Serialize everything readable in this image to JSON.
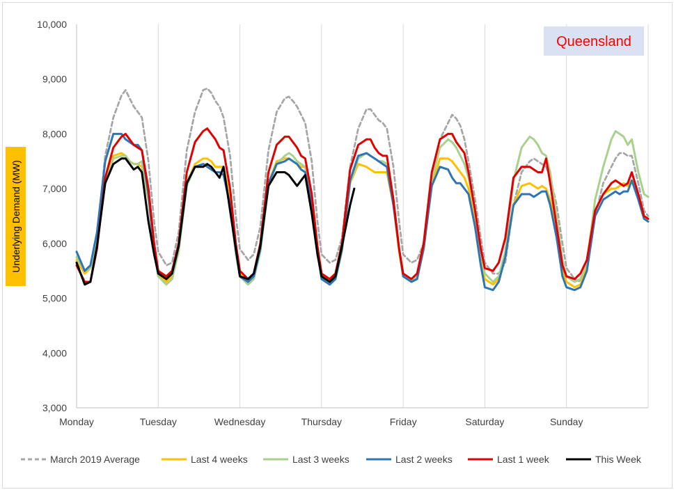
{
  "chart_data": {
    "type": "line",
    "annotation": "Queensland",
    "ylabel": "Underlying Demand (MW)",
    "xlabel": "",
    "ylim": [
      3000,
      10000
    ],
    "yticks": [
      3000,
      4000,
      5000,
      6000,
      7000,
      8000,
      9000,
      10000
    ],
    "ytick_labels": [
      "3,000",
      "4,000",
      "5,000",
      "6,000",
      "7,000",
      "8,000",
      "9,000",
      "10,000"
    ],
    "x_day_labels": [
      "Monday",
      "Tuesday",
      "Wednesday",
      "Thursday",
      "Friday",
      "Saturday",
      "Sunday"
    ],
    "xlim": [
      0,
      7
    ],
    "grid": "vertical",
    "legend_position": "bottom",
    "colors": {
      "annotation_text": "#ff0000",
      "annotation_box": "#d9e1f2",
      "ylabel_box": "#ffc000",
      "grid": "#d9d9d9"
    },
    "series": [
      {
        "name": "March 2019 Average",
        "color": "#a6a6a6",
        "dash": true,
        "x": [
          0,
          0.1,
          0.17,
          0.25,
          0.35,
          0.45,
          0.55,
          0.6,
          0.65,
          0.7,
          0.75,
          0.8,
          0.88,
          0.95,
          1.0,
          1.1,
          1.17,
          1.25,
          1.35,
          1.45,
          1.55,
          1.6,
          1.65,
          1.7,
          1.75,
          1.8,
          1.88,
          1.95,
          2.0,
          2.1,
          2.17,
          2.25,
          2.35,
          2.45,
          2.55,
          2.6,
          2.65,
          2.7,
          2.75,
          2.8,
          2.88,
          2.95,
          3.0,
          3.1,
          3.17,
          3.25,
          3.35,
          3.45,
          3.55,
          3.6,
          3.65,
          3.7,
          3.75,
          3.8,
          3.88,
          3.95,
          4.0,
          4.1,
          4.17,
          4.25,
          4.35,
          4.45,
          4.55,
          4.6,
          4.65,
          4.7,
          4.75,
          4.8,
          4.88,
          4.95,
          5.0,
          5.1,
          5.17,
          5.25,
          5.35,
          5.45,
          5.55,
          5.6,
          5.65,
          5.7,
          5.75,
          5.8,
          5.88,
          5.95,
          6.0,
          6.1,
          6.17,
          6.25,
          6.35,
          6.45,
          6.55,
          6.6,
          6.65,
          6.7,
          6.75,
          6.8,
          6.88,
          6.95,
          7.0
        ],
        "values": [
          5600,
          5500,
          5550,
          6100,
          7600,
          8300,
          8700,
          8800,
          8650,
          8500,
          8400,
          8300,
          7500,
          6400,
          5850,
          5600,
          5650,
          6200,
          7700,
          8400,
          8800,
          8830,
          8750,
          8600,
          8500,
          8300,
          7600,
          6500,
          5900,
          5700,
          5800,
          6300,
          7700,
          8400,
          8650,
          8680,
          8600,
          8500,
          8350,
          8200,
          7500,
          6400,
          5800,
          5650,
          5700,
          6100,
          7400,
          8100,
          8450,
          8450,
          8350,
          8250,
          8200,
          8100,
          7400,
          6400,
          5800,
          5650,
          5700,
          6000,
          7200,
          7900,
          8200,
          8350,
          8280,
          8150,
          7900,
          7500,
          6800,
          6100,
          5650,
          5450,
          5450,
          5650,
          6700,
          7300,
          7500,
          7550,
          7500,
          7450,
          7400,
          7200,
          6700,
          6000,
          5550,
          5350,
          5300,
          5500,
          6500,
          7100,
          7400,
          7550,
          7650,
          7650,
          7600,
          7600,
          7100,
          6600,
          6500
        ]
      },
      {
        "name": "Last 4 weeks",
        "color": "#ffc000",
        "dash": false,
        "x": [
          0,
          0.1,
          0.17,
          0.25,
          0.35,
          0.45,
          0.55,
          0.6,
          0.65,
          0.7,
          0.75,
          0.8,
          0.88,
          0.95,
          1.0,
          1.1,
          1.17,
          1.25,
          1.35,
          1.45,
          1.55,
          1.6,
          1.65,
          1.7,
          1.75,
          1.8,
          1.88,
          1.95,
          2.0,
          2.1,
          2.17,
          2.25,
          2.35,
          2.45,
          2.55,
          2.6,
          2.65,
          2.7,
          2.75,
          2.8,
          2.88,
          2.95,
          3.0,
          3.1,
          3.17,
          3.25,
          3.35,
          3.45,
          3.55,
          3.6,
          3.65,
          3.7,
          3.75,
          3.8,
          3.88,
          3.95,
          4.0,
          4.1,
          4.17,
          4.25,
          4.35,
          4.45,
          4.55,
          4.6,
          4.65,
          4.7,
          4.75,
          4.8,
          4.88,
          4.95,
          5.0,
          5.1,
          5.17,
          5.25,
          5.35,
          5.45,
          5.55,
          5.6,
          5.65,
          5.7,
          5.75,
          5.8,
          5.88,
          5.95,
          6.0,
          6.1,
          6.17,
          6.25,
          6.35,
          6.45,
          6.55,
          6.6,
          6.65,
          6.7,
          6.75,
          6.8,
          6.88,
          6.95,
          7.0
        ],
        "values": [
          5700,
          5450,
          5550,
          6000,
          7200,
          7600,
          7650,
          7600,
          7500,
          7450,
          7450,
          7400,
          6800,
          5900,
          5450,
          5300,
          5400,
          5900,
          7100,
          7450,
          7550,
          7550,
          7500,
          7400,
          7400,
          7400,
          6800,
          5900,
          5450,
          5300,
          5400,
          5900,
          7100,
          7500,
          7550,
          7550,
          7500,
          7450,
          7400,
          7400,
          6800,
          5900,
          5450,
          5300,
          5400,
          5900,
          7100,
          7450,
          7400,
          7350,
          7300,
          7300,
          7300,
          7300,
          6700,
          5850,
          5400,
          5300,
          5350,
          5900,
          7050,
          7550,
          7550,
          7500,
          7400,
          7300,
          7200,
          7000,
          6400,
          5700,
          5350,
          5250,
          5350,
          5750,
          6700,
          7050,
          7100,
          7050,
          7000,
          7050,
          7000,
          6800,
          6200,
          5500,
          5300,
          5200,
          5250,
          5550,
          6600,
          6900,
          7000,
          7000,
          7050,
          7100,
          7050,
          7150,
          6900,
          6500,
          6450
        ]
      },
      {
        "name": "Last 3 weeks",
        "color": "#a9d18e",
        "dash": false,
        "x": [
          0,
          0.1,
          0.17,
          0.25,
          0.35,
          0.45,
          0.55,
          0.6,
          0.65,
          0.7,
          0.75,
          0.8,
          0.88,
          0.95,
          1.0,
          1.1,
          1.17,
          1.25,
          1.35,
          1.45,
          1.55,
          1.6,
          1.65,
          1.7,
          1.75,
          1.8,
          1.88,
          1.95,
          2.0,
          2.1,
          2.17,
          2.25,
          2.35,
          2.45,
          2.55,
          2.6,
          2.65,
          2.7,
          2.75,
          2.8,
          2.88,
          2.95,
          3.0,
          3.1,
          3.17,
          3.25,
          3.35,
          3.45,
          3.55,
          3.6,
          3.65,
          3.7,
          3.75,
          3.8,
          3.88,
          3.95,
          4.0,
          4.1,
          4.17,
          4.25,
          4.35,
          4.45,
          4.55,
          4.6,
          4.65,
          4.7,
          4.75,
          4.8,
          4.88,
          4.95,
          5.0,
          5.1,
          5.17,
          5.25,
          5.35,
          5.45,
          5.55,
          5.6,
          5.65,
          5.7,
          5.75,
          5.8,
          5.88,
          5.95,
          6.0,
          6.1,
          6.17,
          6.25,
          6.35,
          6.45,
          6.55,
          6.6,
          6.65,
          6.7,
          6.75,
          6.8,
          6.88,
          6.95,
          7.0
        ],
        "values": [
          5750,
          5500,
          5550,
          6000,
          7100,
          7550,
          7600,
          7600,
          7500,
          7450,
          7450,
          7500,
          6800,
          5850,
          5400,
          5250,
          5350,
          5850,
          7050,
          7400,
          7450,
          7450,
          7400,
          7300,
          7300,
          7300,
          6700,
          5800,
          5400,
          5250,
          5350,
          5850,
          7050,
          7450,
          7600,
          7650,
          7600,
          7500,
          7450,
          7400,
          6800,
          5850,
          5400,
          5250,
          5350,
          5850,
          7100,
          7550,
          7650,
          7600,
          7550,
          7500,
          7500,
          7450,
          6800,
          5900,
          5450,
          5300,
          5400,
          5950,
          7150,
          7750,
          7900,
          7850,
          7750,
          7600,
          7450,
          7200,
          6600,
          5850,
          5450,
          5300,
          5400,
          5850,
          7150,
          7750,
          7950,
          7900,
          7800,
          7650,
          7600,
          7300,
          6500,
          5700,
          5400,
          5300,
          5350,
          5650,
          6800,
          7400,
          7900,
          8050,
          8000,
          7950,
          7800,
          7900,
          7300,
          6900,
          6850
        ]
      },
      {
        "name": "Last 2 weeks",
        "color": "#2e75b6",
        "dash": false,
        "x": [
          0,
          0.1,
          0.17,
          0.25,
          0.35,
          0.45,
          0.55,
          0.6,
          0.65,
          0.7,
          0.75,
          0.8,
          0.88,
          0.95,
          1.0,
          1.1,
          1.17,
          1.25,
          1.35,
          1.45,
          1.55,
          1.6,
          1.65,
          1.7,
          1.75,
          1.8,
          1.88,
          1.95,
          2.0,
          2.1,
          2.17,
          2.25,
          2.35,
          2.45,
          2.55,
          2.6,
          2.65,
          2.7,
          2.75,
          2.8,
          2.88,
          2.95,
          3.0,
          3.1,
          3.17,
          3.25,
          3.35,
          3.45,
          3.55,
          3.6,
          3.65,
          3.7,
          3.75,
          3.8,
          3.88,
          3.95,
          4.0,
          4.1,
          4.17,
          4.25,
          4.35,
          4.45,
          4.55,
          4.6,
          4.65,
          4.7,
          4.75,
          4.8,
          4.88,
          4.95,
          5.0,
          5.1,
          5.17,
          5.25,
          5.35,
          5.45,
          5.55,
          5.6,
          5.65,
          5.7,
          5.75,
          5.8,
          5.88,
          5.95,
          6.0,
          6.1,
          6.17,
          6.25,
          6.35,
          6.45,
          6.55,
          6.6,
          6.65,
          6.7,
          6.75,
          6.8,
          6.88,
          6.95,
          7.0
        ],
        "values": [
          5850,
          5500,
          5600,
          6200,
          7500,
          8000,
          8000,
          7900,
          7850,
          7800,
          7800,
          7700,
          6900,
          5900,
          5450,
          5400,
          5500,
          5950,
          7100,
          7400,
          7450,
          7400,
          7350,
          7300,
          7300,
          7250,
          6700,
          5900,
          5400,
          5300,
          5400,
          5900,
          7100,
          7450,
          7500,
          7550,
          7500,
          7450,
          7350,
          7300,
          6700,
          5850,
          5350,
          5250,
          5350,
          5900,
          7150,
          7600,
          7650,
          7600,
          7550,
          7500,
          7450,
          7400,
          6700,
          5900,
          5400,
          5300,
          5350,
          5900,
          7050,
          7400,
          7350,
          7200,
          7100,
          7100,
          7000,
          6900,
          6300,
          5600,
          5200,
          5150,
          5300,
          5750,
          6700,
          6900,
          6900,
          6850,
          6900,
          6950,
          6950,
          6700,
          6100,
          5400,
          5200,
          5150,
          5200,
          5500,
          6500,
          6800,
          6900,
          6950,
          6900,
          6950,
          6950,
          7150,
          6800,
          6450,
          6400
        ]
      },
      {
        "name": "Last 1 week",
        "color": "#e00000",
        "dash": false,
        "x": [
          0,
          0.1,
          0.17,
          0.25,
          0.35,
          0.45,
          0.55,
          0.6,
          0.65,
          0.7,
          0.75,
          0.8,
          0.88,
          0.95,
          1.0,
          1.1,
          1.17,
          1.25,
          1.35,
          1.45,
          1.55,
          1.6,
          1.65,
          1.7,
          1.75,
          1.8,
          1.88,
          1.95,
          2.0,
          2.1,
          2.17,
          2.25,
          2.35,
          2.45,
          2.55,
          2.6,
          2.65,
          2.7,
          2.75,
          2.8,
          2.88,
          2.95,
          3.0,
          3.1,
          3.17,
          3.25,
          3.35,
          3.45,
          3.55,
          3.6,
          3.65,
          3.7,
          3.75,
          3.8,
          3.88,
          3.95,
          4.0,
          4.1,
          4.17,
          4.25,
          4.35,
          4.45,
          4.55,
          4.6,
          4.65,
          4.7,
          4.75,
          4.8,
          4.88,
          4.95,
          5.0,
          5.1,
          5.17,
          5.25,
          5.35,
          5.45,
          5.55,
          5.6,
          5.65,
          5.7,
          5.75,
          5.8,
          5.88,
          5.95,
          6.0,
          6.1,
          6.17,
          6.25,
          6.35,
          6.45,
          6.55,
          6.6,
          6.65,
          6.7,
          6.75,
          6.8,
          6.88,
          6.95,
          7.0
        ],
        "values": [
          5600,
          5300,
          5300,
          5900,
          7200,
          7750,
          7950,
          8000,
          7900,
          7800,
          7750,
          7700,
          7000,
          6000,
          5500,
          5400,
          5500,
          6000,
          7300,
          7850,
          8050,
          8100,
          8000,
          7900,
          7750,
          7700,
          7000,
          6000,
          5500,
          5350,
          5450,
          6000,
          7300,
          7800,
          7950,
          7950,
          7850,
          7750,
          7600,
          7550,
          6900,
          5950,
          5450,
          5350,
          5450,
          6000,
          7350,
          7800,
          7900,
          7900,
          7750,
          7650,
          7600,
          7600,
          6800,
          5900,
          5450,
          5350,
          5450,
          6000,
          7300,
          7900,
          8000,
          8000,
          7850,
          7750,
          7650,
          7300,
          6600,
          5900,
          5550,
          5500,
          5650,
          6100,
          7200,
          7400,
          7400,
          7350,
          7300,
          7300,
          7550,
          7100,
          6300,
          5600,
          5400,
          5350,
          5450,
          5700,
          6600,
          6900,
          7100,
          7150,
          7100,
          7050,
          7100,
          7300,
          6900,
          6500,
          6450
        ]
      },
      {
        "name": "This Week",
        "color": "#000000",
        "dash": false,
        "x": [
          0,
          0.1,
          0.17,
          0.25,
          0.35,
          0.45,
          0.55,
          0.6,
          0.65,
          0.7,
          0.75,
          0.8,
          0.88,
          0.95,
          1.0,
          1.1,
          1.17,
          1.25,
          1.35,
          1.45,
          1.55,
          1.6,
          1.65,
          1.7,
          1.75,
          1.8,
          1.88,
          1.95,
          2.0,
          2.1,
          2.17,
          2.25,
          2.35,
          2.45,
          2.55,
          2.6,
          2.65,
          2.7,
          2.75,
          2.8,
          2.88,
          2.95,
          3.0,
          3.1,
          3.17,
          3.25,
          3.35,
          3.4
        ],
        "values": [
          5650,
          5250,
          5300,
          5950,
          7100,
          7450,
          7550,
          7550,
          7450,
          7350,
          7400,
          7300,
          6400,
          5800,
          5450,
          5350,
          5450,
          5950,
          7100,
          7400,
          7400,
          7450,
          7400,
          7300,
          7200,
          7400,
          6600,
          5900,
          5400,
          5350,
          5450,
          5950,
          7050,
          7300,
          7300,
          7250,
          7150,
          7050,
          7150,
          7250,
          6550,
          5800,
          5400,
          5300,
          5400,
          5950,
          6700,
          7000
        ]
      }
    ]
  }
}
